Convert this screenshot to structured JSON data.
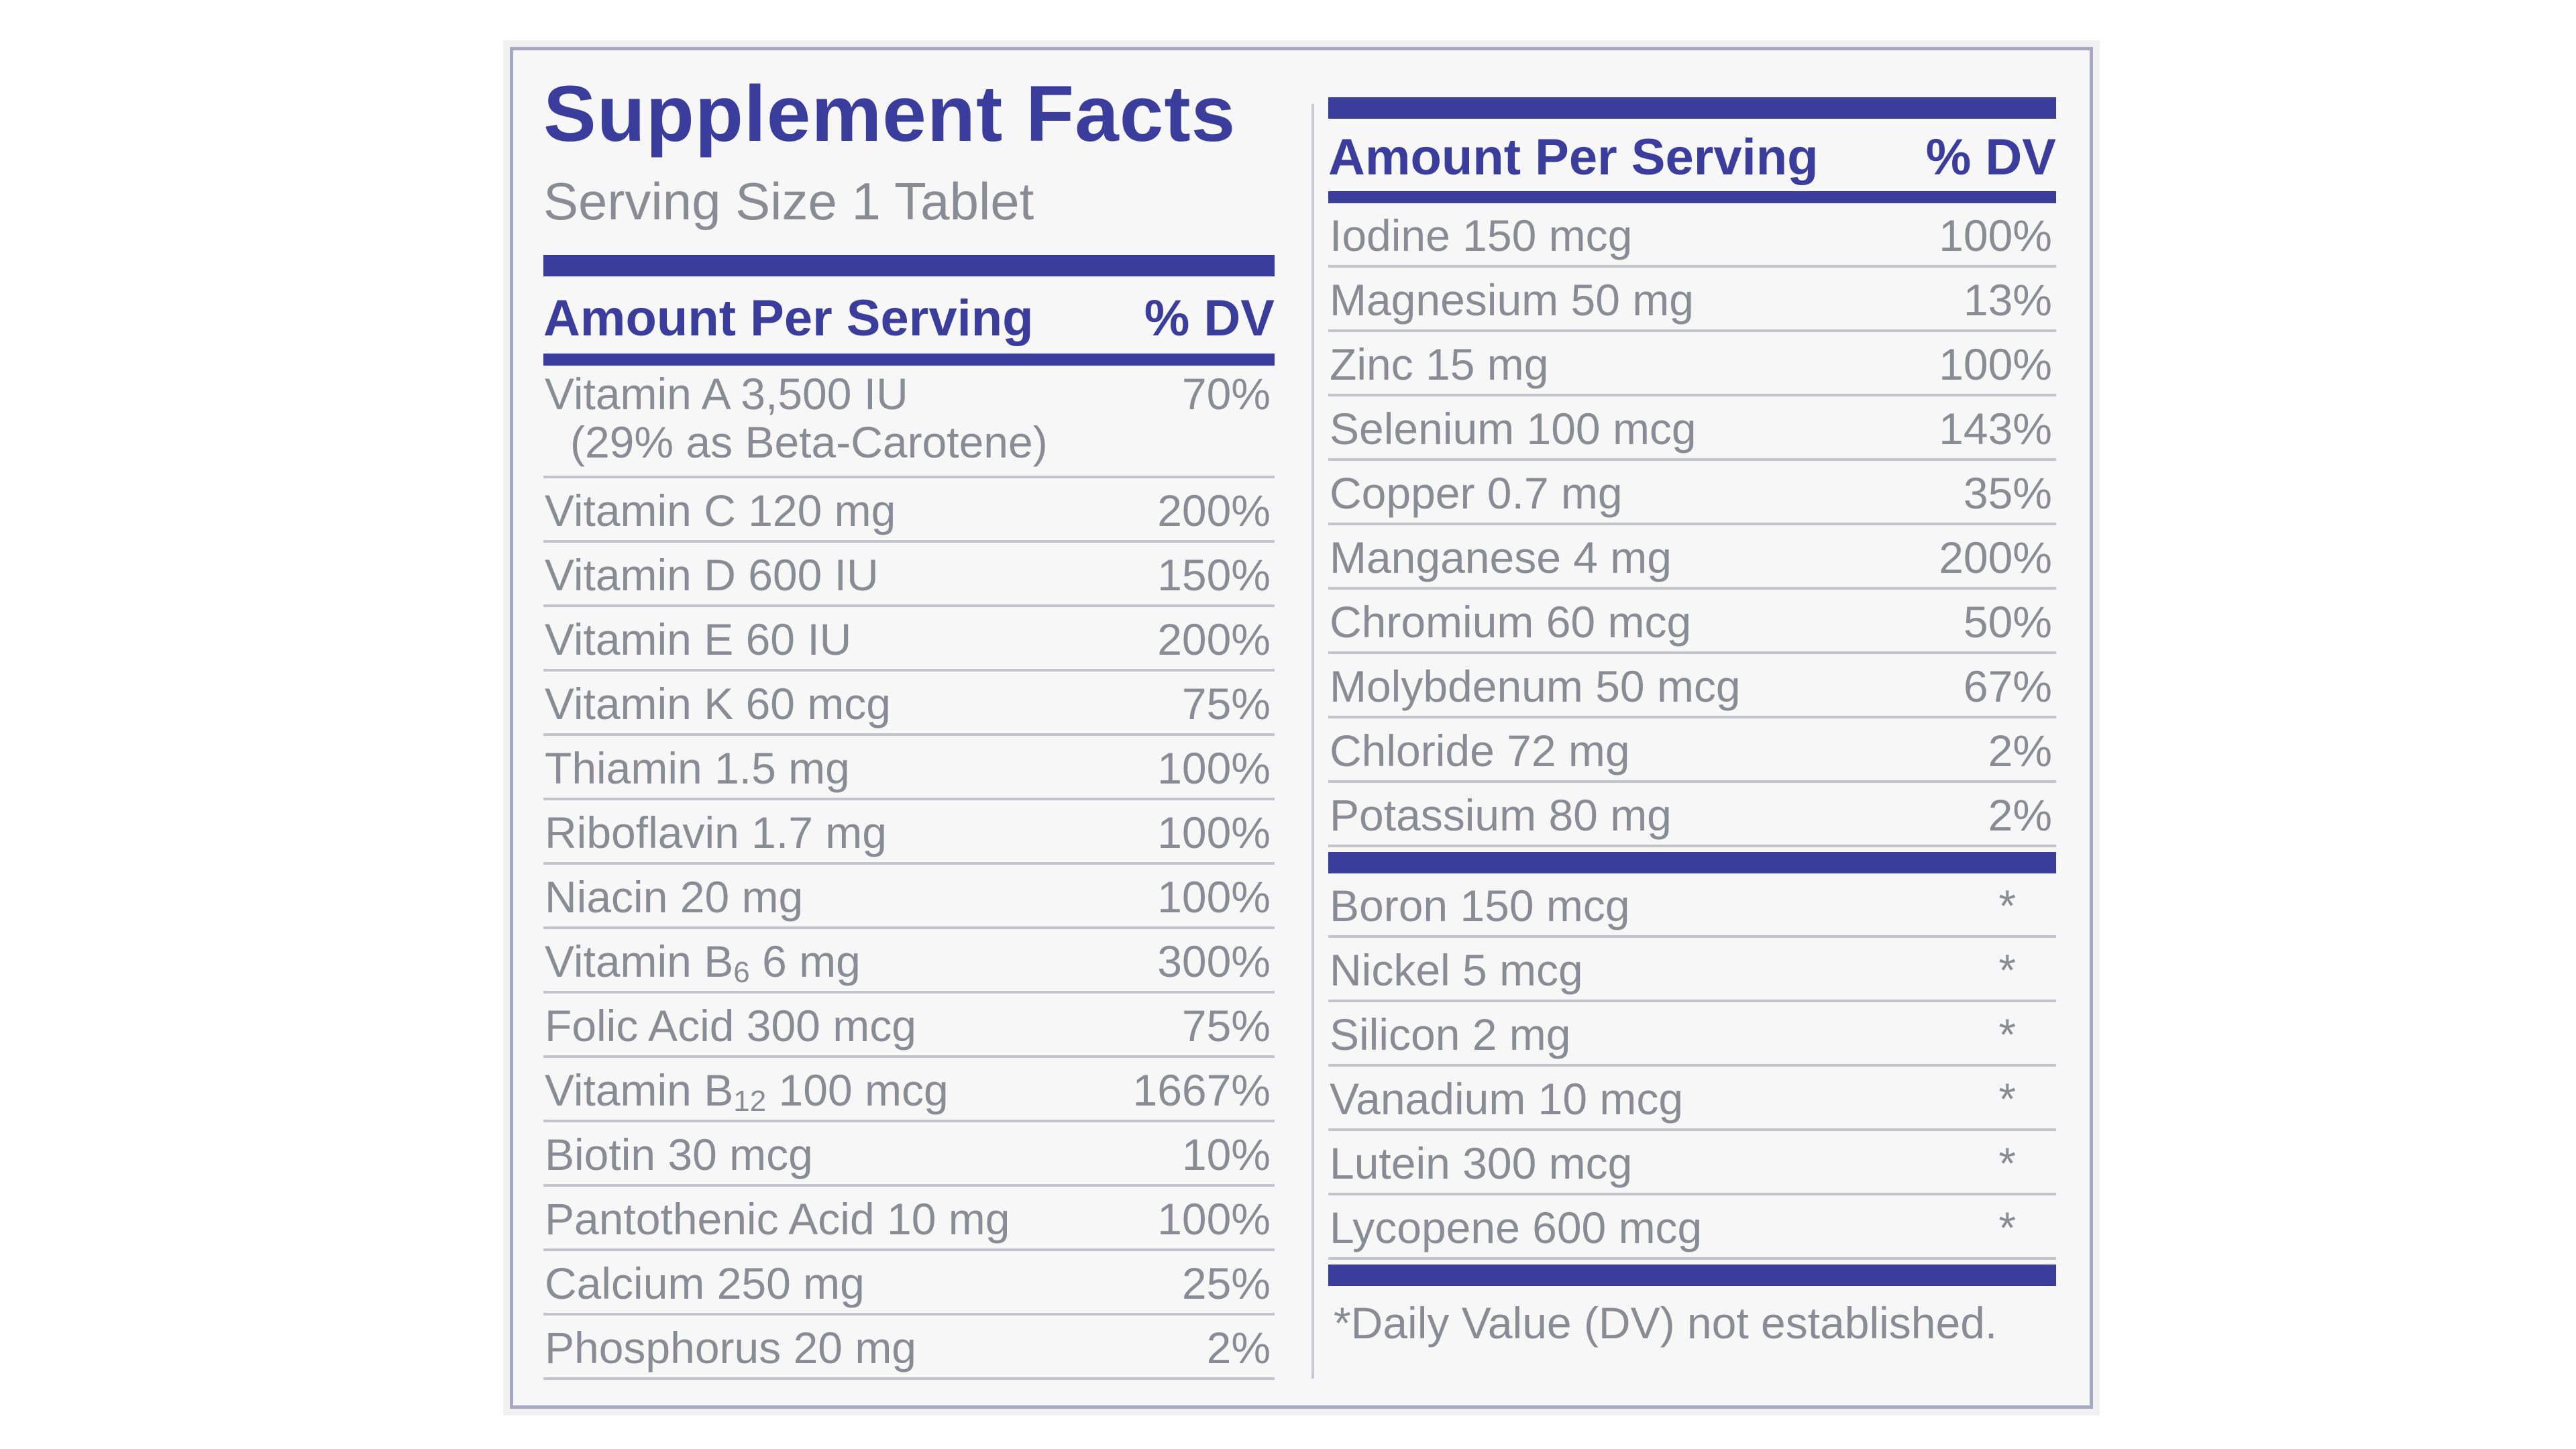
{
  "title": "Supplement Facts",
  "serving_size": "Serving Size 1 Tablet",
  "header": {
    "amount": "Amount Per Serving",
    "dv": "% DV"
  },
  "colors": {
    "navy": "#3a3d9b",
    "text": "#8a8c95",
    "background": "#f6f7f6",
    "rule": "#c3c4cc"
  },
  "left_rows": [
    {
      "name": "Vitamin A 3,500 IU",
      "sub": "(29% as Beta-Carotene)",
      "dv": "70%"
    },
    {
      "name": "Vitamin C 120 mg",
      "dv": "200%"
    },
    {
      "name": "Vitamin D 600 IU",
      "dv": "150%"
    },
    {
      "name": "Vitamin E  60 IU",
      "dv": "200%"
    },
    {
      "name": "Vitamin K 60 mcg",
      "dv": "75%"
    },
    {
      "name": "Thiamin 1.5 mg",
      "dv": "100%"
    },
    {
      "name": "Riboflavin 1.7 mg",
      "dv": "100%"
    },
    {
      "name": "Niacin 20 mg",
      "dv": "100%"
    },
    {
      "name": "Vitamin B",
      "name_sub": "6",
      "name_rest": " 6 mg",
      "dv": "300%"
    },
    {
      "name": "Folic Acid 300 mcg",
      "dv": "75%"
    },
    {
      "name": "Vitamin B",
      "name_sub": "12",
      "name_rest": " 100 mcg",
      "dv": "1667%"
    },
    {
      "name": "Biotin 30 mcg",
      "dv": "10%"
    },
    {
      "name": "Pantothenic Acid 10 mg",
      "dv": "100%"
    },
    {
      "name": "Calcium 250 mg",
      "dv": "25%"
    },
    {
      "name": "Phosphorus 20 mg",
      "dv": "2%"
    }
  ],
  "right_rows": [
    {
      "name": "Iodine 150 mcg",
      "dv": "100%"
    },
    {
      "name": "Magnesium 50 mg",
      "dv": "13%"
    },
    {
      "name": "Zinc 15 mg",
      "dv": "100%"
    },
    {
      "name": "Selenium 100 mcg",
      "dv": "143%"
    },
    {
      "name": "Copper 0.7 mg",
      "dv": "35%"
    },
    {
      "name": "Manganese 4 mg",
      "dv": "200%"
    },
    {
      "name": "Chromium 60 mcg",
      "dv": "50%"
    },
    {
      "name": "Molybdenum 50 mcg",
      "dv": "67%"
    },
    {
      "name": "Chloride 72 mg",
      "dv": "2%"
    },
    {
      "name": "Potassium 80 mg",
      "dv": "2%"
    }
  ],
  "extra_rows": [
    {
      "name": "Boron 150 mcg",
      "dv": "*"
    },
    {
      "name": "Nickel 5 mcg",
      "dv": "*"
    },
    {
      "name": "Silicon 2 mg",
      "dv": "*"
    },
    {
      "name": "Vanadium 10 mcg",
      "dv": "*"
    },
    {
      "name": "Lutein 300 mcg",
      "dv": "*"
    },
    {
      "name": "Lycopene 600 mcg",
      "dv": "*"
    }
  ],
  "footnote": "*Daily Value (DV) not established."
}
